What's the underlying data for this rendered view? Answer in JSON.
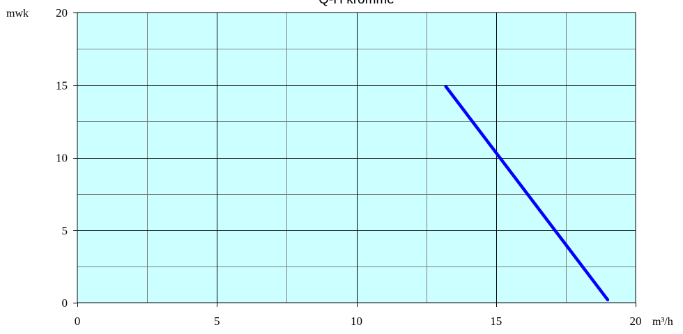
{
  "chart_data": {
    "type": "line",
    "title": "Q-H kromme",
    "xlabel": "m³/h",
    "ylabel": "mwk",
    "xlim": [
      0,
      20
    ],
    "ylim": [
      0,
      20
    ],
    "x_major_ticks": [
      0,
      5,
      10,
      15,
      20
    ],
    "y_major_ticks": [
      0,
      5,
      10,
      15,
      20
    ],
    "x_minor_step": 2.5,
    "y_minor_step": 2.5,
    "grid": true,
    "colors": {
      "plot_background": "#ccffff",
      "major_grid": "#000000",
      "minor_grid": "#808080",
      "line": "#0000ff"
    },
    "series": [
      {
        "x": [
          13.2,
          19.0
        ],
        "y": [
          14.9,
          0.2
        ]
      }
    ]
  }
}
